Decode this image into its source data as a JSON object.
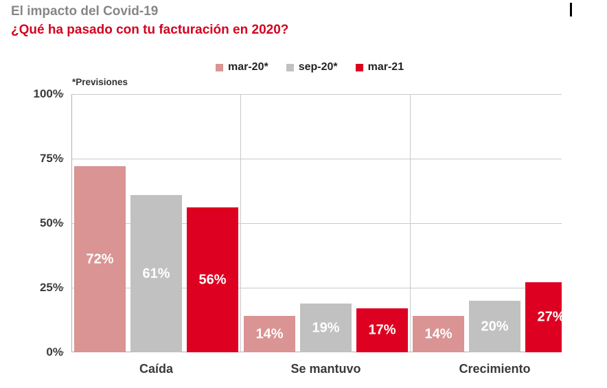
{
  "page": {
    "header_title": "El impacto del Covid-19",
    "header_question": "¿Qué ha pasado con tu facturación en 2020?"
  },
  "chart_data": {
    "type": "bar",
    "title": "El impacto del Covid-19",
    "subtitle": "¿Qué ha pasado con tu facturación en 2020?",
    "note": "*Previsiones",
    "categories": [
      "Caída",
      "Se mantuvo",
      "Crecimiento"
    ],
    "series": [
      {
        "name": "mar-20*",
        "color": "#d99493",
        "values": [
          72,
          14,
          14
        ]
      },
      {
        "name": "sep-20*",
        "color": "#c1c1c2",
        "values": [
          61,
          19,
          20
        ]
      },
      {
        "name": "mar-21",
        "color": "#de0021",
        "values": [
          56,
          17,
          27
        ]
      }
    ],
    "value_suffix": "%",
    "y_ticks": [
      "100%",
      "75%",
      "50%",
      "25%",
      "0%"
    ],
    "ylim": [
      0,
      100
    ],
    "grid": true,
    "legend_position": "top-center",
    "colors": {
      "subtitle_red": "#d40220",
      "title_gray": "#868686",
      "bar_label_text": "#ffffff",
      "axis_text": "#3a3a3a",
      "gridline": "#c9c9c9"
    }
  }
}
